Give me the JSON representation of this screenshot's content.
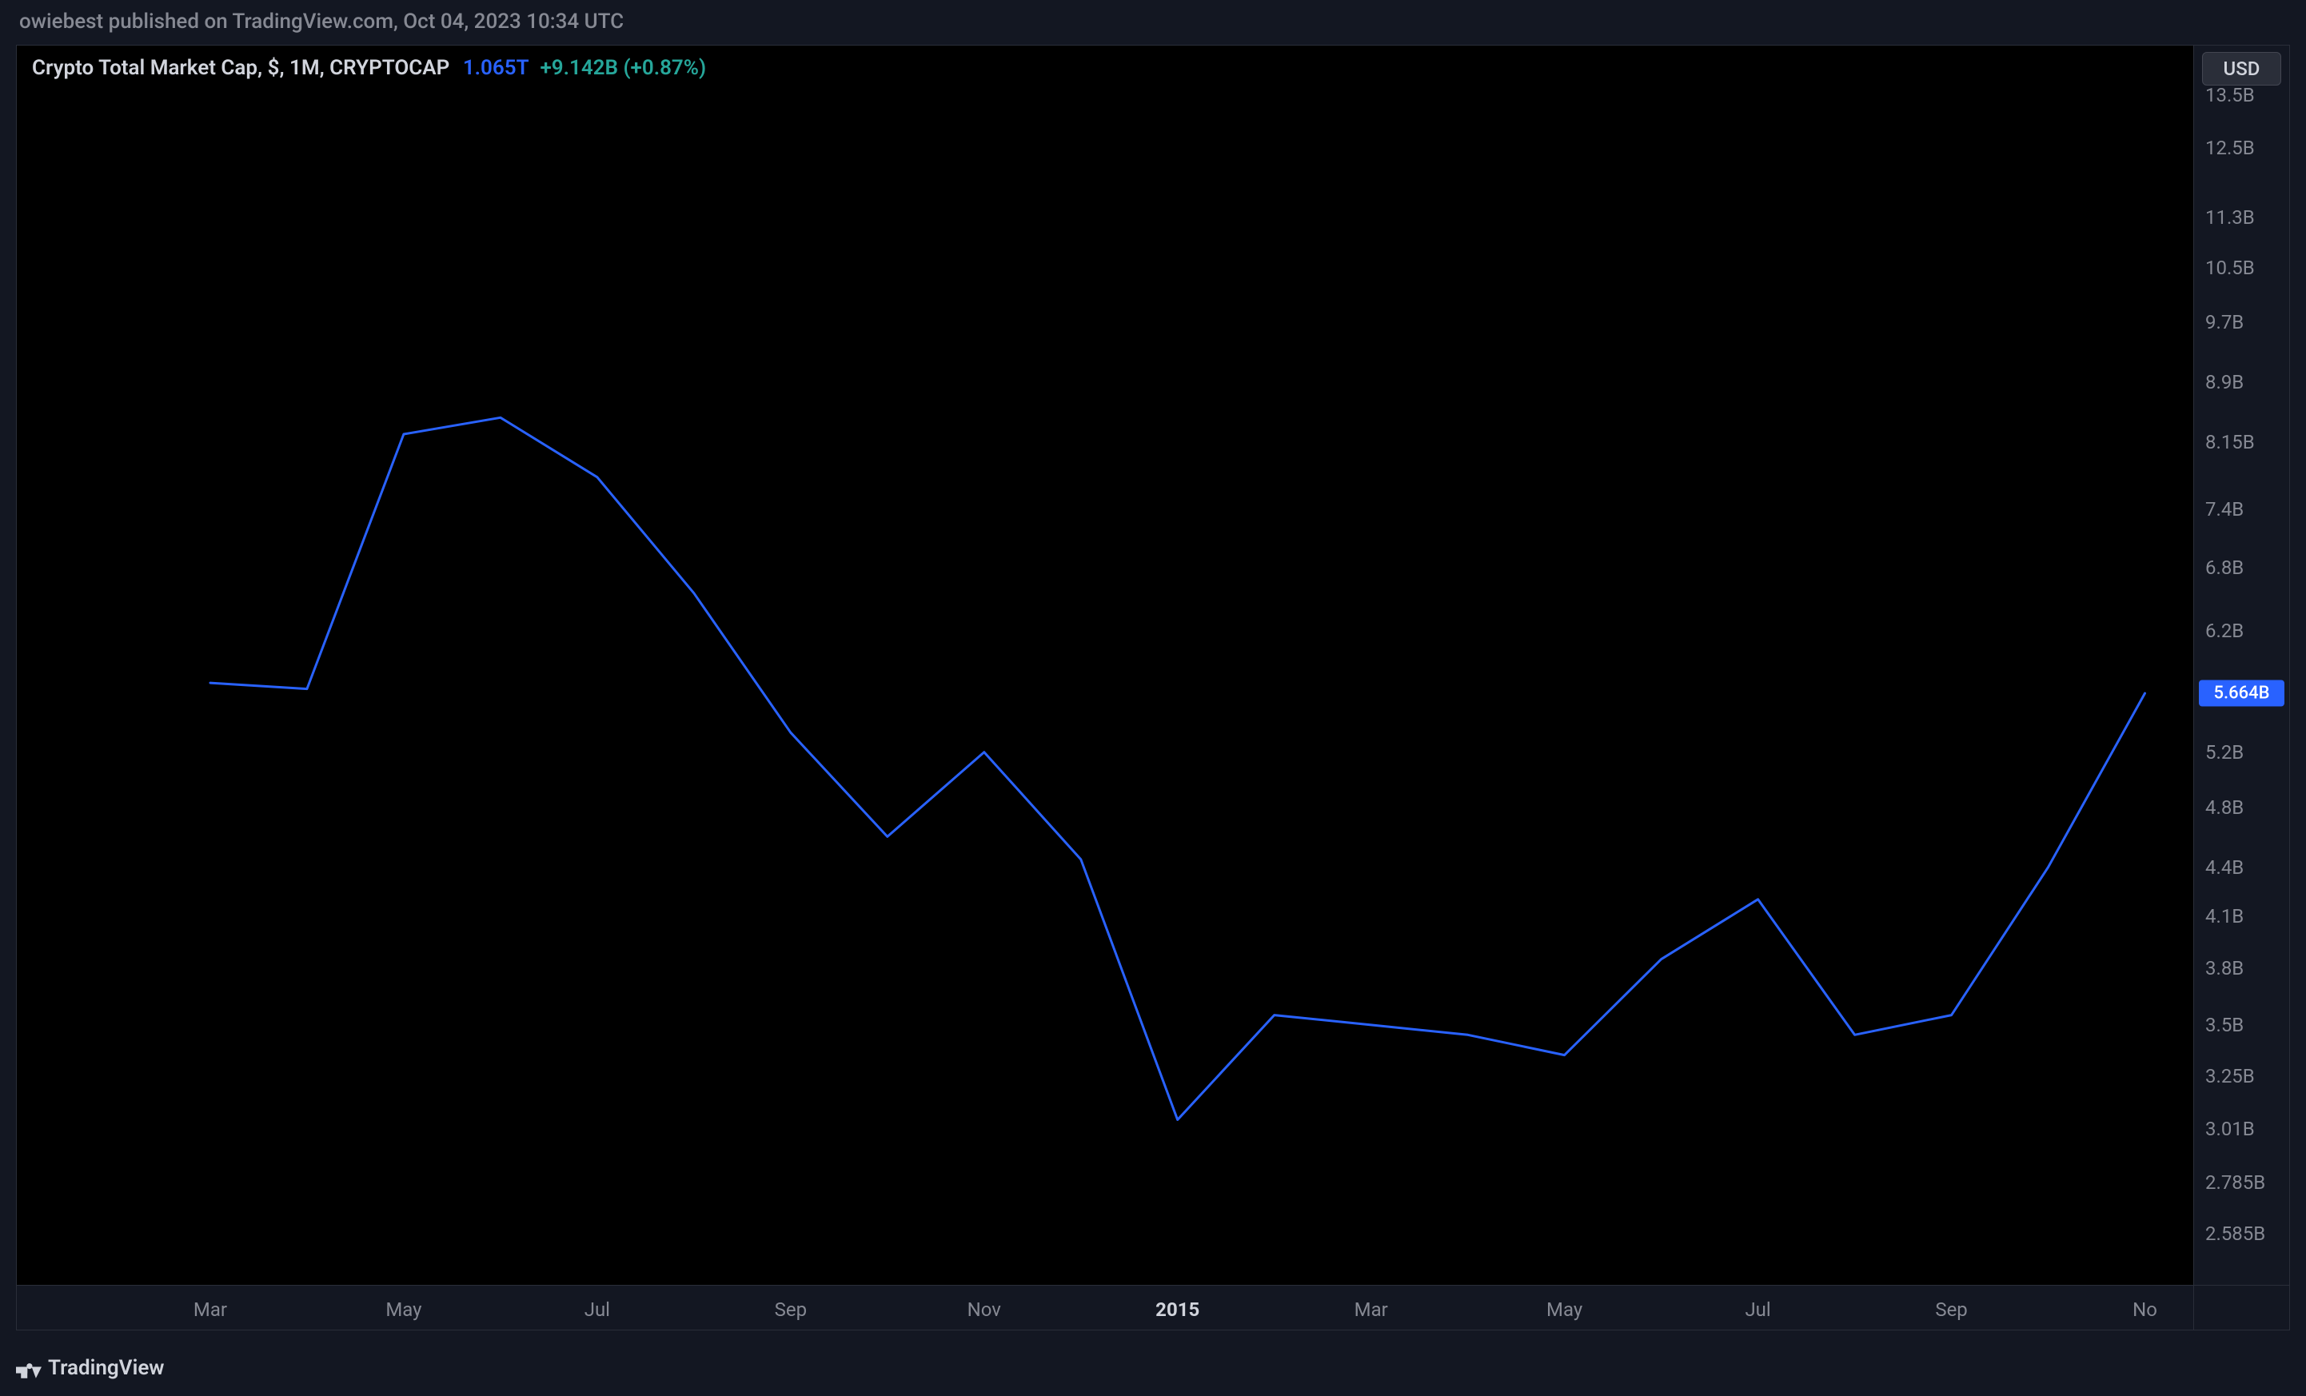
{
  "header": {
    "text": "owiebest published on TradingView.com, Oct 04, 2023 10:34 UTC"
  },
  "legend": {
    "title": "Crypto Total Market Cap, $, 1M, CRYPTOCAP",
    "value1": "1.065T",
    "value2": "+9.142B (+0.87%)"
  },
  "footer": {
    "brand": "TradingView"
  },
  "chart": {
    "type": "line",
    "line_color": "#2962ff",
    "line_width": 3,
    "background_color": "#000000",
    "panel_background": "#131722",
    "border_color": "#2a2e39",
    "text_color": "#868993",
    "currency_label": "USD",
    "price_label": {
      "text": "5.664B",
      "value": 5.664,
      "bg": "#2962ff",
      "fg": "#ffffff"
    },
    "x_domain_months": {
      "start": 0,
      "end": 22.5
    },
    "y_axis": {
      "scale": "log",
      "min": 2.4,
      "max": 14.5,
      "ticks": [
        {
          "label": "13.5B",
          "value": 13.5
        },
        {
          "label": "12.5B",
          "value": 12.5
        },
        {
          "label": "11.3B",
          "value": 11.3
        },
        {
          "label": "10.5B",
          "value": 10.5
        },
        {
          "label": "9.7B",
          "value": 9.7
        },
        {
          "label": "8.9B",
          "value": 8.9
        },
        {
          "label": "8.15B",
          "value": 8.15
        },
        {
          "label": "7.4B",
          "value": 7.4
        },
        {
          "label": "6.8B",
          "value": 6.8
        },
        {
          "label": "6.2B",
          "value": 6.2
        },
        {
          "label": "5.2B",
          "value": 5.2
        },
        {
          "label": "4.8B",
          "value": 4.8
        },
        {
          "label": "4.4B",
          "value": 4.4
        },
        {
          "label": "4.1B",
          "value": 4.1
        },
        {
          "label": "3.8B",
          "value": 3.8
        },
        {
          "label": "3.5B",
          "value": 3.5
        },
        {
          "label": "3.25B",
          "value": 3.25
        },
        {
          "label": "3.01B",
          "value": 3.01
        },
        {
          "label": "2.785B",
          "value": 2.785
        },
        {
          "label": "2.585B",
          "value": 2.585
        }
      ]
    },
    "x_axis": {
      "ticks": [
        {
          "label": "Mar",
          "month": 2,
          "bold": false
        },
        {
          "label": "May",
          "month": 4,
          "bold": false
        },
        {
          "label": "Jul",
          "month": 6,
          "bold": false
        },
        {
          "label": "Sep",
          "month": 8,
          "bold": false
        },
        {
          "label": "Nov",
          "month": 10,
          "bold": false
        },
        {
          "label": "2015",
          "month": 12,
          "bold": true
        },
        {
          "label": "Mar",
          "month": 14,
          "bold": false
        },
        {
          "label": "May",
          "month": 16,
          "bold": false
        },
        {
          "label": "Jul",
          "month": 18,
          "bold": false
        },
        {
          "label": "Sep",
          "month": 20,
          "bold": false
        },
        {
          "label": "No",
          "month": 22,
          "bold": false
        }
      ]
    },
    "data": [
      {
        "month": 2,
        "value": 5.75
      },
      {
        "month": 3,
        "value": 5.7
      },
      {
        "month": 4,
        "value": 8.25
      },
      {
        "month": 5,
        "value": 8.45
      },
      {
        "month": 6,
        "value": 7.75
      },
      {
        "month": 7,
        "value": 6.55
      },
      {
        "month": 8,
        "value": 5.35
      },
      {
        "month": 9,
        "value": 4.6
      },
      {
        "month": 10,
        "value": 5.2
      },
      {
        "month": 11,
        "value": 4.45
      },
      {
        "month": 12,
        "value": 3.05
      },
      {
        "month": 13,
        "value": 3.55
      },
      {
        "month": 14,
        "value": 3.5
      },
      {
        "month": 15,
        "value": 3.45
      },
      {
        "month": 16,
        "value": 3.35
      },
      {
        "month": 17,
        "value": 3.85
      },
      {
        "month": 18,
        "value": 4.2
      },
      {
        "month": 19,
        "value": 3.45
      },
      {
        "month": 20,
        "value": 3.55
      },
      {
        "month": 21,
        "value": 4.4
      },
      {
        "month": 22,
        "value": 5.664
      }
    ]
  }
}
